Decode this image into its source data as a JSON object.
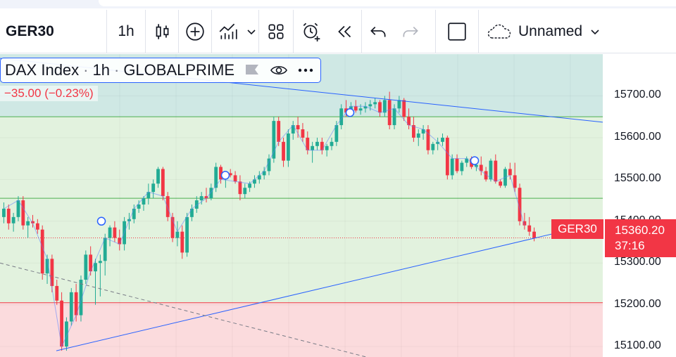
{
  "toolbar": {
    "symbol": "GER30",
    "interval": "1h",
    "layout_name": "Unnamed",
    "icons": [
      "candles-icon",
      "add-compare-icon",
      "indicators-icon",
      "chevron-down-icon",
      "templates-icon",
      "alert-icon",
      "replay-icon",
      "undo-icon",
      "redo-icon",
      "fullscreen-icon",
      "cloud-icon",
      "chevron-down-icon"
    ]
  },
  "legend": {
    "name": "DAX Index",
    "sep": "·",
    "interval": "1h",
    "source": "GLOBALPRIME",
    "change": "−35.00 (−0.23%)"
  },
  "price_axis": {
    "labels": [
      "15700.00",
      "15600.00",
      "15500.00",
      "15400.00",
      "15300.00",
      "15200.00",
      "15100.00"
    ]
  },
  "last_price": {
    "symbol": "GER30",
    "price": "15360.20",
    "countdown": "37:16"
  },
  "colors": {
    "up": "#22ab94",
    "down": "#f23645",
    "trendline": "#2962ff",
    "zone_top": "#cfe8e4",
    "zone_mid": "#e2f2de",
    "zone_bottom": "#fbdbdd"
  },
  "chart_data": {
    "type": "candlestick",
    "ylim": [
      15075,
      15800
    ],
    "levels": [
      15745,
      15650,
      15455,
      15205
    ],
    "last": 15360.2,
    "candles": [
      [
        15410,
        15445,
        15395,
        15430
      ],
      [
        15430,
        15440,
        15380,
        15395
      ],
      [
        15395,
        15420,
        15375,
        15410
      ],
      [
        15410,
        15460,
        15400,
        15450
      ],
      [
        15450,
        15460,
        15380,
        15390
      ],
      [
        15390,
        15410,
        15360,
        15400
      ],
      [
        15400,
        15415,
        15385,
        15395
      ],
      [
        15395,
        15405,
        15370,
        15380
      ],
      [
        15380,
        15390,
        15260,
        15275
      ],
      [
        15275,
        15320,
        15250,
        15310
      ],
      [
        15310,
        15320,
        15230,
        15245
      ],
      [
        15245,
        15260,
        15200,
        15210
      ],
      [
        15210,
        15230,
        15090,
        15100
      ],
      [
        15100,
        15170,
        15090,
        15160
      ],
      [
        15160,
        15240,
        15150,
        15230
      ],
      [
        15230,
        15250,
        15160,
        15175
      ],
      [
        15175,
        15270,
        15160,
        15260
      ],
      [
        15260,
        15330,
        15250,
        15320
      ],
      [
        15320,
        15340,
        15270,
        15280
      ],
      [
        15280,
        15310,
        15200,
        15300
      ],
      [
        15300,
        15320,
        15220,
        15305
      ],
      [
        15305,
        15370,
        15270,
        15360
      ],
      [
        15360,
        15390,
        15340,
        15385
      ],
      [
        15385,
        15400,
        15350,
        15360
      ],
      [
        15360,
        15380,
        15330,
        15345
      ],
      [
        15345,
        15410,
        15330,
        15400
      ],
      [
        15400,
        15420,
        15380,
        15405
      ],
      [
        15405,
        15440,
        15395,
        15430
      ],
      [
        15430,
        15450,
        15420,
        15440
      ],
      [
        15440,
        15460,
        15425,
        15455
      ],
      [
        15455,
        15490,
        15440,
        15470
      ],
      [
        15470,
        15500,
        15455,
        15490
      ],
      [
        15490,
        15530,
        15480,
        15525
      ],
      [
        15525,
        15530,
        15450,
        15460
      ],
      [
        15460,
        15470,
        15400,
        15410
      ],
      [
        15410,
        15420,
        15350,
        15360
      ],
      [
        15360,
        15400,
        15340,
        15375
      ],
      [
        15375,
        15390,
        15310,
        15325
      ],
      [
        15325,
        15420,
        15315,
        15410
      ],
      [
        15410,
        15440,
        15400,
        15430
      ],
      [
        15430,
        15460,
        15420,
        15450
      ],
      [
        15450,
        15470,
        15440,
        15460
      ],
      [
        15460,
        15480,
        15445,
        15455
      ],
      [
        15455,
        15490,
        15450,
        15480
      ],
      [
        15480,
        15540,
        15470,
        15530
      ],
      [
        15530,
        15535,
        15490,
        15500
      ],
      [
        15500,
        15520,
        15480,
        15515
      ],
      [
        15515,
        15525,
        15505,
        15510
      ],
      [
        15510,
        15520,
        15490,
        15495
      ],
      [
        15495,
        15510,
        15450,
        15465
      ],
      [
        15465,
        15490,
        15455,
        15480
      ],
      [
        15480,
        15495,
        15470,
        15490
      ],
      [
        15490,
        15510,
        15480,
        15500
      ],
      [
        15500,
        15520,
        15490,
        15510
      ],
      [
        15510,
        15530,
        15500,
        15520
      ],
      [
        15520,
        15560,
        15510,
        15550
      ],
      [
        15550,
        15650,
        15540,
        15640
      ],
      [
        15640,
        15650,
        15580,
        15590
      ],
      [
        15590,
        15600,
        15530,
        15545
      ],
      [
        15545,
        15620,
        15530,
        15610
      ],
      [
        15610,
        15640,
        15595,
        15630
      ],
      [
        15630,
        15650,
        15600,
        15620
      ],
      [
        15620,
        15635,
        15590,
        15600
      ],
      [
        15600,
        15615,
        15560,
        15570
      ],
      [
        15570,
        15590,
        15540,
        15580
      ],
      [
        15580,
        15600,
        15570,
        15590
      ],
      [
        15590,
        15600,
        15560,
        15570
      ],
      [
        15570,
        15585,
        15555,
        15580
      ],
      [
        15580,
        15600,
        15570,
        15590
      ],
      [
        15590,
        15640,
        15580,
        15630
      ],
      [
        15630,
        15680,
        15620,
        15670
      ],
      [
        15670,
        15690,
        15650,
        15660
      ],
      [
        15660,
        15685,
        15650,
        15675
      ],
      [
        15675,
        15690,
        15660,
        15665
      ],
      [
        15665,
        15680,
        15655,
        15670
      ],
      [
        15670,
        15685,
        15660,
        15675
      ],
      [
        15675,
        15690,
        15665,
        15680
      ],
      [
        15680,
        15695,
        15670,
        15685
      ],
      [
        15685,
        15690,
        15650,
        15660
      ],
      [
        15660,
        15700,
        15650,
        15690
      ],
      [
        15690,
        15710,
        15620,
        15630
      ],
      [
        15630,
        15680,
        15620,
        15670
      ],
      [
        15670,
        15700,
        15660,
        15690
      ],
      [
        15690,
        15695,
        15640,
        15650
      ],
      [
        15650,
        15670,
        15620,
        15630
      ],
      [
        15630,
        15650,
        15590,
        15600
      ],
      [
        15600,
        15620,
        15580,
        15610
      ],
      [
        15610,
        15630,
        15595,
        15620
      ],
      [
        15620,
        15630,
        15560,
        15570
      ],
      [
        15570,
        15590,
        15560,
        15585
      ],
      [
        15585,
        15600,
        15570,
        15590
      ],
      [
        15590,
        15610,
        15580,
        15600
      ],
      [
        15600,
        15605,
        15500,
        15510
      ],
      [
        15510,
        15560,
        15500,
        15550
      ],
      [
        15550,
        15560,
        15515,
        15520
      ],
      [
        15520,
        15545,
        15510,
        15540
      ],
      [
        15540,
        15555,
        15530,
        15550
      ],
      [
        15550,
        15555,
        15525,
        15530
      ],
      [
        15530,
        15545,
        15520,
        15535
      ],
      [
        15535,
        15555,
        15510,
        15520
      ],
      [
        15520,
        15530,
        15495,
        15500
      ],
      [
        15500,
        15550,
        15495,
        15545
      ],
      [
        15545,
        15560,
        15490,
        15495
      ],
      [
        15495,
        15500,
        15480,
        15485
      ],
      [
        15485,
        15530,
        15480,
        15525
      ],
      [
        15525,
        15540,
        15500,
        15510
      ],
      [
        15510,
        15540,
        15470,
        15480
      ],
      [
        15480,
        15490,
        15390,
        15400
      ],
      [
        15400,
        15420,
        15380,
        15390
      ],
      [
        15390,
        15410,
        15365,
        15375
      ],
      [
        15375,
        15385,
        15352,
        15360
      ]
    ]
  }
}
